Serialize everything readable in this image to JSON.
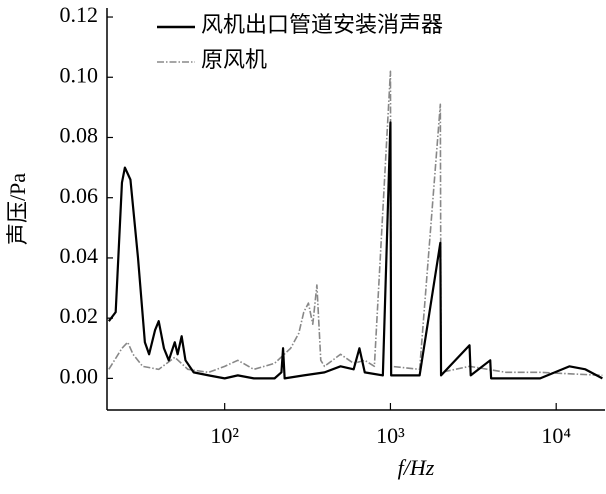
{
  "chart_data": {
    "type": "line",
    "xlabel": "f/Hz",
    "ylabel": "声压/Pa",
    "xscale": "log",
    "xlim": [
      19.5,
      19700
    ],
    "ylim": [
      -0.0105,
      0.123
    ],
    "xticks": [
      {
        "value": 100,
        "label": "10²"
      },
      {
        "value": 1000,
        "label": "10³"
      },
      {
        "value": 10000,
        "label": "10⁴"
      }
    ],
    "yticks": [
      {
        "value": 0,
        "label": "0.00"
      },
      0.02,
      0.04,
      0.06,
      0.08,
      {
        "value": 0.1,
        "label": "0.10"
      },
      0.12
    ],
    "legend": "upper left",
    "series": [
      {
        "name": "风机出口管道安装消声器",
        "color": "#000000",
        "style": "solid",
        "x": [
          20,
          22,
          24,
          25,
          27,
          30,
          33,
          35,
          38,
          40,
          43,
          46,
          50,
          52,
          55,
          58,
          65,
          80,
          100,
          120,
          150,
          200,
          220,
          225,
          230,
          300,
          400,
          500,
          600,
          650,
          700,
          900,
          1000,
          1010,
          1500,
          2000,
          2020,
          3000,
          3050,
          4000,
          4050,
          8000,
          12000,
          15000,
          19000
        ],
        "values": [
          0.019,
          0.022,
          0.065,
          0.07,
          0.066,
          0.04,
          0.012,
          0.008,
          0.016,
          0.019,
          0.01,
          0.006,
          0.012,
          0.008,
          0.014,
          0.006,
          0.002,
          0.001,
          0.0,
          0.001,
          0.0,
          0.0,
          0.002,
          0.01,
          0.0,
          0.001,
          0.002,
          0.004,
          0.003,
          0.01,
          0.002,
          0.001,
          0.085,
          0.001,
          0.001,
          0.045,
          0.001,
          0.011,
          0.001,
          0.006,
          0.0,
          0.0,
          0.004,
          0.003,
          0.0
        ]
      },
      {
        "name": "原风机",
        "color": "#888888",
        "style": "dashdot",
        "x": [
          20,
          24,
          26,
          28,
          32,
          40,
          50,
          60,
          80,
          100,
          120,
          150,
          200,
          250,
          280,
          300,
          320,
          340,
          360,
          380,
          400,
          500,
          600,
          700,
          800,
          1000,
          1010,
          1500,
          2000,
          2020,
          3000,
          5000,
          8000,
          19000
        ],
        "values": [
          0.003,
          0.01,
          0.012,
          0.008,
          0.004,
          0.003,
          0.007,
          0.003,
          0.002,
          0.004,
          0.006,
          0.003,
          0.005,
          0.01,
          0.015,
          0.022,
          0.025,
          0.018,
          0.031,
          0.006,
          0.004,
          0.008,
          0.005,
          0.006,
          0.004,
          0.102,
          0.004,
          0.003,
          0.091,
          0.002,
          0.004,
          0.002,
          0.002,
          0.001
        ]
      }
    ]
  }
}
